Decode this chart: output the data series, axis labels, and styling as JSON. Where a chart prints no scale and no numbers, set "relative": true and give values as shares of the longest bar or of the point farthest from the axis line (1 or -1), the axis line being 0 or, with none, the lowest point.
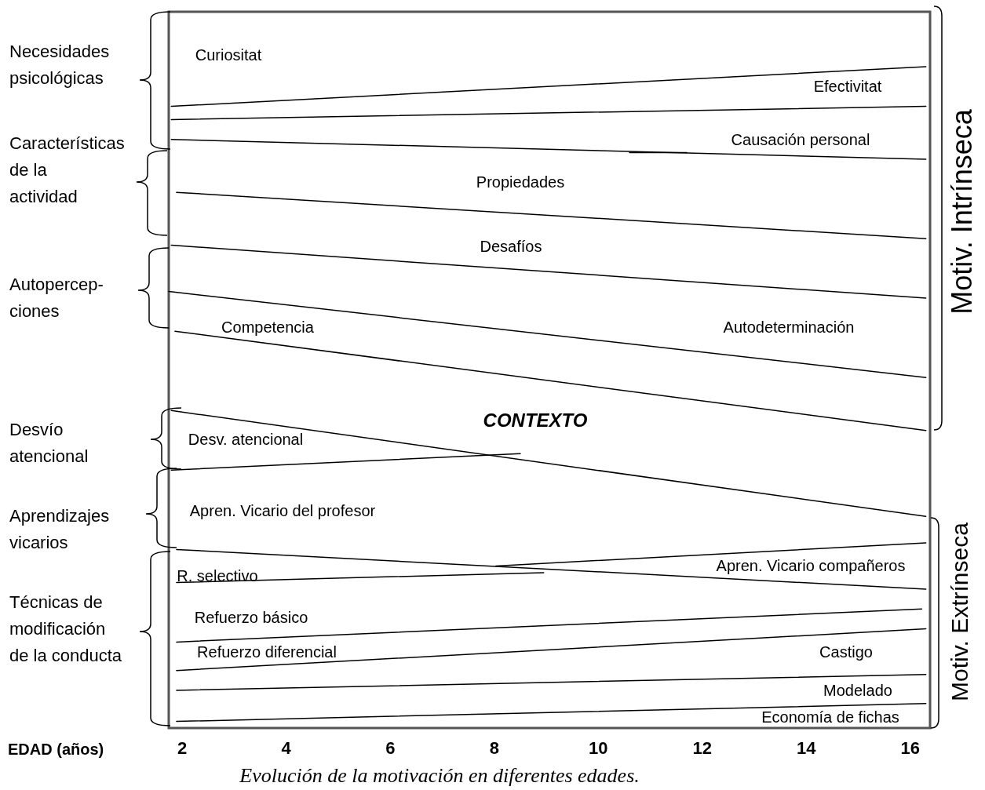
{
  "chart_data": {
    "type": "line",
    "relative": true,
    "title": "Evolución de la motivación en diferentes edades.",
    "xlabel": "EDAD (años)",
    "xlim": [
      1.74,
      16.38
    ],
    "xticks": [
      2,
      4,
      6,
      8,
      10,
      12,
      14,
      16
    ],
    "grid": false,
    "marker": "none",
    "line_style": "solid",
    "series": [
      {
        "color": "#000000",
        "x": [
          1.79,
          16.3
        ],
        "values": [
          0.94,
          1.0
        ]
      },
      {
        "color": "#000000",
        "x": [
          1.79,
          16.3
        ],
        "values": [
          0.92,
          0.94
        ]
      },
      {
        "color": "#000000",
        "x": [
          1.79,
          16.3
        ],
        "values": [
          0.89,
          0.86
        ]
      },
      {
        "color": "#000000",
        "x": [
          10.6,
          11.7
        ],
        "values": [
          0.87,
          0.87
        ]
      },
      {
        "color": "#000000",
        "x": [
          1.89,
          16.3
        ],
        "values": [
          0.81,
          0.74
        ]
      },
      {
        "color": "#000000",
        "x": [
          1.79,
          16.3
        ],
        "values": [
          0.73,
          0.65
        ]
      },
      {
        "color": "#000000",
        "x": [
          1.74,
          16.3
        ],
        "values": [
          0.66,
          0.53
        ]
      },
      {
        "color": "#000000",
        "x": [
          1.86,
          16.3
        ],
        "values": [
          0.6,
          0.45
        ]
      },
      {
        "color": "#000000",
        "x": [
          1.79,
          16.3
        ],
        "values": [
          0.48,
          0.32
        ]
      },
      {
        "color": "#000000",
        "x": [
          1.79,
          8.5
        ],
        "values": [
          0.39,
          0.415
        ]
      },
      {
        "color": "#000000",
        "x": [
          1.89,
          16.3
        ],
        "values": [
          0.27,
          0.21
        ]
      },
      {
        "color": "#000000",
        "x": [
          1.89,
          8.95
        ],
        "values": [
          0.22,
          0.235
        ]
      },
      {
        "color": "#000000",
        "x": [
          8.03,
          16.3
        ],
        "values": [
          0.245,
          0.28
        ]
      },
      {
        "color": "#000000",
        "x": [
          1.89,
          16.22
        ],
        "values": [
          0.13,
          0.18
        ]
      },
      {
        "color": "#000000",
        "x": [
          1.89,
          16.3
        ],
        "values": [
          0.087,
          0.15
        ]
      },
      {
        "color": "#000000",
        "x": [
          1.89,
          16.3
        ],
        "values": [
          0.057,
          0.081
        ]
      },
      {
        "color": "#000000",
        "x": [
          1.89,
          16.3
        ],
        "values": [
          0.01,
          0.037
        ]
      }
    ],
    "annotations": [
      "Curiositat",
      "Efectivitat",
      "Causación personal",
      "Propiedades",
      "Desafíos",
      "Competencia",
      "Autodeterminación",
      "CONTEXTO",
      "Desv. atencional",
      "Apren. Vicario del profesor",
      "R. selectivo",
      "Apren. Vicario compañeros",
      "Refuerzo básico",
      "Refuerzo diferencial",
      "Castigo",
      "Modelado",
      "Economía de fichas",
      "Necesidades\npsicológicas",
      "Características\nde la\nactividad",
      "Autopercep-\nciones",
      "Desvío\natencional",
      "Aprendizajes\nvicarios",
      "Técnicas de\nmodificación\nde la conducta",
      "Motiv. Intrínseca",
      "Motiv. Extrínseca"
    ]
  }
}
